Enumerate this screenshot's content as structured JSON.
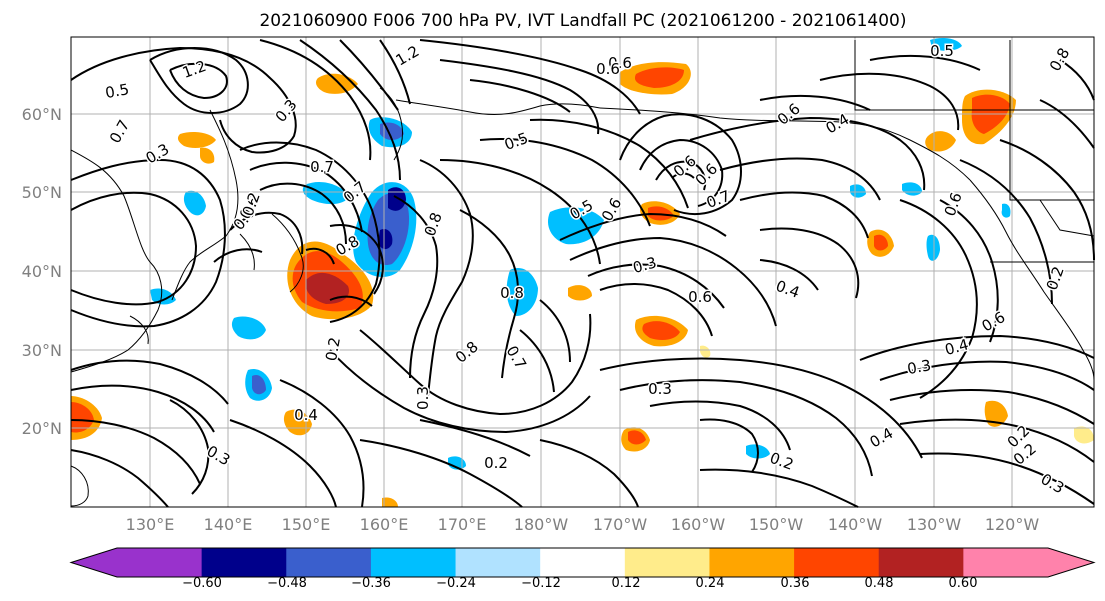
{
  "title": "2021060900 F006 700 hPa PV, IVT Landfall PC (2021061200 - 2021061400)",
  "lat_labels": [
    "60°N",
    "50°N",
    "40°N",
    "30°N",
    "20°N"
  ],
  "lon_labels": [
    "130°E",
    "140°E",
    "150°E",
    "160°E",
    "170°E",
    "180°W",
    "170°W",
    "160°W",
    "150°W",
    "140°W",
    "130°W",
    "120°W"
  ],
  "colorbar": {
    "colors": [
      "#9932CC",
      "#00008B",
      "#3A5FCD",
      "#00BFFF",
      "#B0E2FF",
      "#FFFFFF",
      "#FFEC8B",
      "#FFA500",
      "#FF4500",
      "#B22222",
      "#FF82AB"
    ],
    "ticks": [
      "−0.60",
      "−0.48",
      "−0.36",
      "−0.24",
      "−0.12",
      "0.12",
      "0.24",
      "0.36",
      "0.48",
      "0.60"
    ]
  },
  "contour_labels": [
    "1.2",
    "1.2",
    "0.6",
    "0.8",
    "0.5",
    "0.6",
    "0.5",
    "0.3",
    "0.7",
    "0.3",
    "0.6",
    "0.6",
    "0.7",
    "0.7",
    "0.8",
    "0.6",
    "0.5",
    "0.6",
    "0.3",
    "0.6",
    "0.7",
    "0.6",
    "0.8",
    "0.4",
    "0.8",
    "0.8",
    "0.7",
    "0.6",
    "0.4",
    "0.6",
    "0.5",
    "0.2",
    "0.2",
    "0.4",
    "0.8",
    "0.3",
    "0.3",
    "0.4",
    "0.3",
    "0.2",
    "0.4",
    "0.2",
    "0.2",
    "0.3",
    "0.2",
    "0.3",
    "0.2"
  ]
}
